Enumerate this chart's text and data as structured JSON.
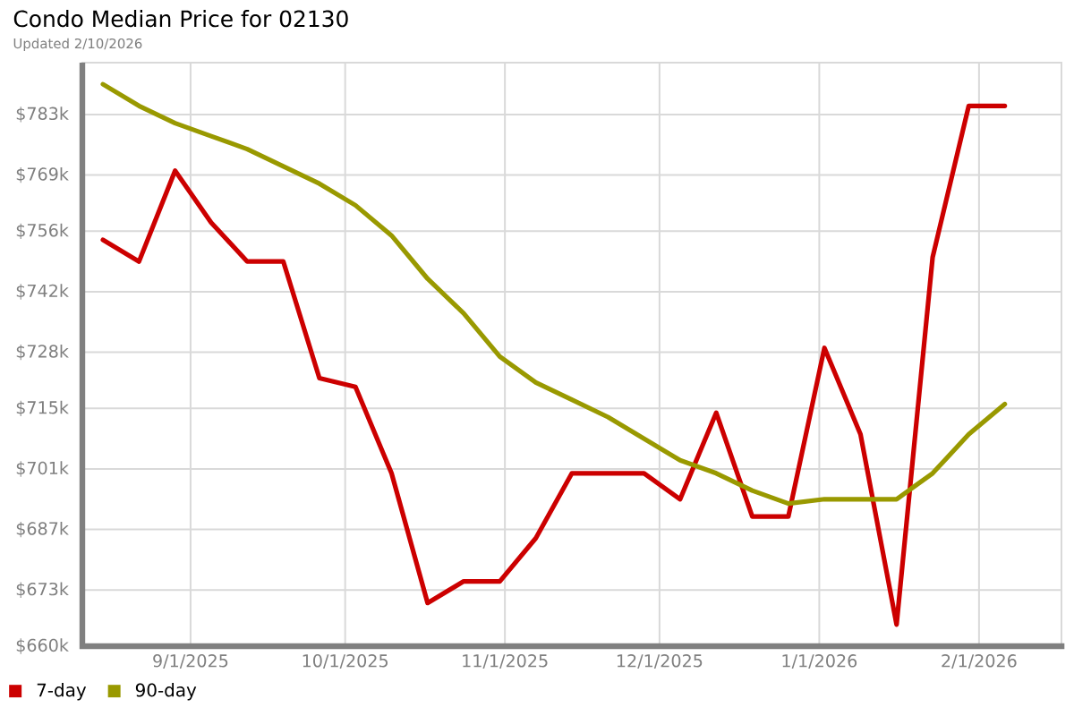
{
  "chart_data": {
    "type": "line",
    "title": "Condo Median Price for 02130",
    "subtitle": "Updated 2/10/2026",
    "x": [
      "2025-08-15",
      "2025-08-22",
      "2025-08-29",
      "2025-09-05",
      "2025-09-12",
      "2025-09-19",
      "2025-09-26",
      "2025-10-03",
      "2025-10-10",
      "2025-10-17",
      "2025-10-24",
      "2025-10-31",
      "2025-11-07",
      "2025-11-14",
      "2025-11-21",
      "2025-11-28",
      "2025-12-05",
      "2025-12-12",
      "2025-12-19",
      "2025-12-26",
      "2026-01-02",
      "2026-01-09",
      "2026-01-16",
      "2026-01-23",
      "2026-01-30",
      "2026-02-06"
    ],
    "series": [
      {
        "name": "7-day",
        "color": "#cc0000",
        "values": [
          754,
          749,
          770,
          758,
          749,
          749,
          722,
          720,
          700,
          670,
          675,
          675,
          685,
          700,
          700,
          700,
          694,
          714,
          690,
          690,
          729,
          709,
          665,
          750,
          785,
          785
        ]
      },
      {
        "name": "90-day",
        "color": "#999900",
        "values": [
          790,
          785,
          781,
          778,
          775,
          771,
          767,
          762,
          755,
          745,
          737,
          727,
          721,
          717,
          713,
          708,
          703,
          700,
          696,
          693,
          694,
          694,
          694,
          700,
          709,
          716
        ]
      }
    ],
    "xlim": [
      "2025-08-11",
      "2026-02-17"
    ],
    "xticks": [
      {
        "value": "2025-09-01",
        "label": "9/1/2025"
      },
      {
        "value": "2025-10-01",
        "label": "10/1/2025"
      },
      {
        "value": "2025-11-01",
        "label": "11/1/2025"
      },
      {
        "value": "2025-12-01",
        "label": "12/1/2025"
      },
      {
        "value": "2026-01-01",
        "label": "1/1/2026"
      },
      {
        "value": "2026-02-01",
        "label": "2/1/2026"
      }
    ],
    "ylim": [
      660,
      795
    ],
    "yticks": [
      {
        "value": 660,
        "label": "$660k"
      },
      {
        "value": 673,
        "label": "$673k"
      },
      {
        "value": 687,
        "label": "$687k"
      },
      {
        "value": 701,
        "label": "$701k"
      },
      {
        "value": 715,
        "label": "$715k"
      },
      {
        "value": 728,
        "label": "$728k"
      },
      {
        "value": 742,
        "label": "$742k"
      },
      {
        "value": 756,
        "label": "$756k"
      },
      {
        "value": 769,
        "label": "$769k"
      },
      {
        "value": 783,
        "label": "$783k"
      }
    ],
    "grid": true,
    "legend": "bottom",
    "marker": "none",
    "line_style": "solid"
  }
}
